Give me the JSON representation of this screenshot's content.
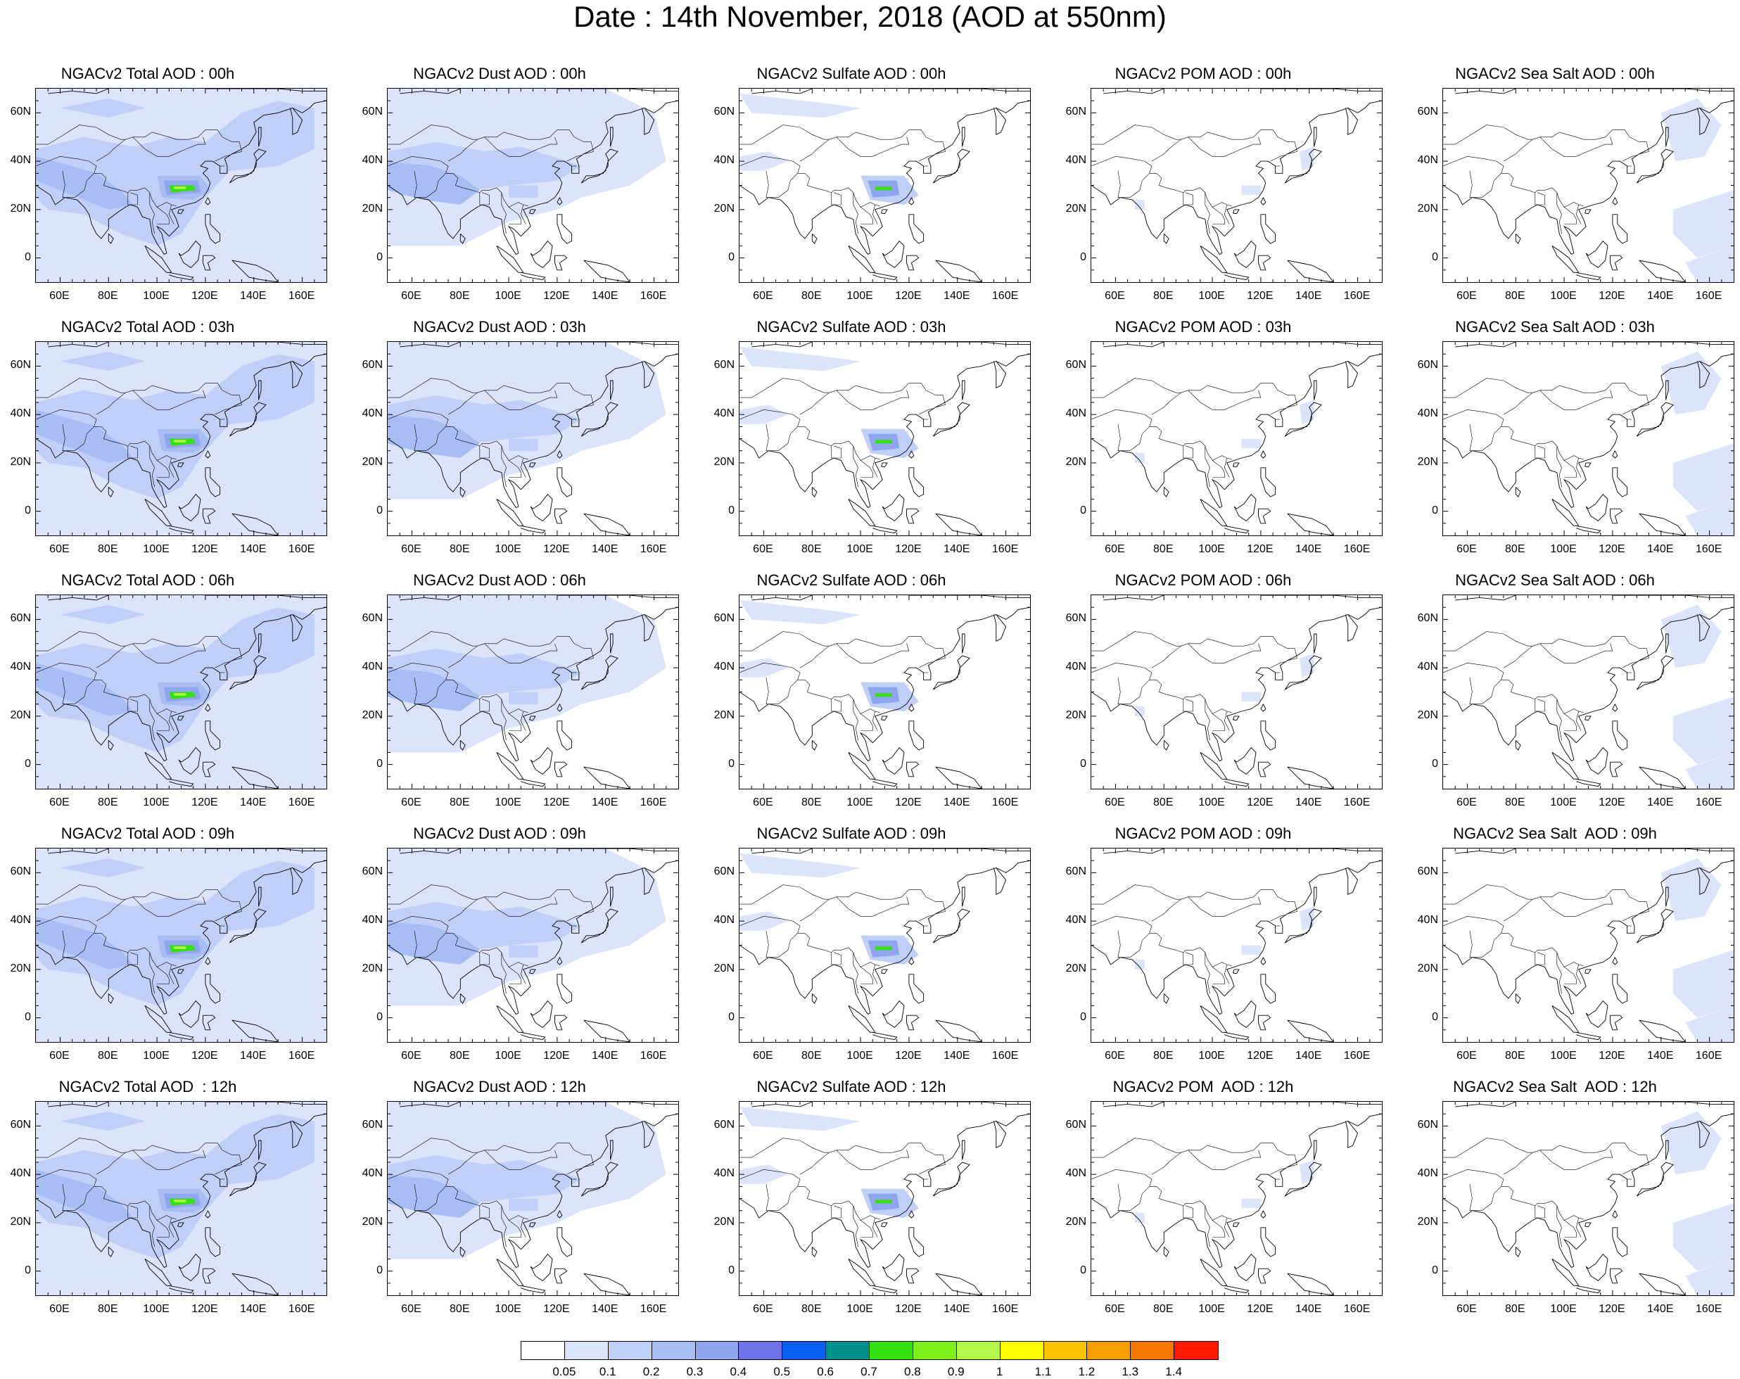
{
  "title": "Date : 14th November, 2018 (AOD at 550nm)",
  "chart_data": {
    "type": "heatmap",
    "panels": [
      {
        "title": "NGACv2 Total AOD : 00h",
        "variable": "total",
        "hour": "00h"
      },
      {
        "title": "NGACv2 Dust AOD : 00h",
        "variable": "dust",
        "hour": "00h"
      },
      {
        "title": "NGACv2 Sulfate AOD : 00h",
        "variable": "sulfate",
        "hour": "00h"
      },
      {
        "title": "NGACv2 POM AOD : 00h",
        "variable": "pom",
        "hour": "00h"
      },
      {
        "title": "NGACv2 Sea Salt AOD : 00h",
        "variable": "seasalt",
        "hour": "00h"
      },
      {
        "title": "NGACv2 Total AOD : 03h",
        "variable": "total",
        "hour": "03h"
      },
      {
        "title": "NGACv2 Dust AOD : 03h",
        "variable": "dust",
        "hour": "03h"
      },
      {
        "title": "NGACv2 Sulfate AOD : 03h",
        "variable": "sulfate",
        "hour": "03h"
      },
      {
        "title": "NGACv2 POM AOD : 03h",
        "variable": "pom",
        "hour": "03h"
      },
      {
        "title": "NGACv2 Sea Salt AOD : 03h",
        "variable": "seasalt",
        "hour": "03h"
      },
      {
        "title": "NGACv2 Total AOD : 06h",
        "variable": "total",
        "hour": "06h"
      },
      {
        "title": "NGACv2 Dust AOD : 06h",
        "variable": "dust",
        "hour": "06h"
      },
      {
        "title": "NGACv2 Sulfate AOD : 06h",
        "variable": "sulfate",
        "hour": "06h"
      },
      {
        "title": "NGACv2 POM AOD : 06h",
        "variable": "pom",
        "hour": "06h"
      },
      {
        "title": "NGACv2 Sea Salt AOD : 06h",
        "variable": "seasalt",
        "hour": "06h"
      },
      {
        "title": "NGACv2 Total AOD : 09h",
        "variable": "total",
        "hour": "09h"
      },
      {
        "title": "NGACv2 Dust AOD : 09h",
        "variable": "dust",
        "hour": "09h"
      },
      {
        "title": "NGACv2 Sulfate AOD : 09h",
        "variable": "sulfate",
        "hour": "09h"
      },
      {
        "title": "NGACv2 POM AOD : 09h",
        "variable": "pom",
        "hour": "09h"
      },
      {
        "title": "NGACv2 Sea Salt  AOD : 09h",
        "variable": "seasalt",
        "hour": "09h"
      },
      {
        "title": "NGACv2 Total AOD  : 12h",
        "variable": "total",
        "hour": "12h"
      },
      {
        "title": "NGACv2 Dust AOD : 12h",
        "variable": "dust",
        "hour": "12h"
      },
      {
        "title": "NGACv2 Sulfate AOD : 12h",
        "variable": "sulfate",
        "hour": "12h"
      },
      {
        "title": "NGACv2 POM  AOD : 12h",
        "variable": "pom",
        "hour": "12h"
      },
      {
        "title": "NGACv2 Sea Salt  AOD : 12h",
        "variable": "seasalt",
        "hour": "12h"
      }
    ],
    "lat_ticks": [
      "60N",
      "40N",
      "20N",
      "0"
    ],
    "lon_ticks": [
      "60E",
      "80E",
      "100E",
      "120E",
      "140E",
      "160E"
    ],
    "lat_range": [
      -10,
      70
    ],
    "lon_range": [
      50,
      170
    ],
    "colorbar": {
      "labels": [
        "0.05",
        "0.1",
        "0.2",
        "0.3",
        "0.4",
        "0.5",
        "0.6",
        "0.7",
        "0.8",
        "0.9",
        "1",
        "1.1",
        "1.2",
        "1.3",
        "1.4"
      ],
      "colors": [
        "#ffffff",
        "#dbe4fb",
        "#c0cff8",
        "#a9bdf5",
        "#8fa5f0",
        "#6f72e8",
        "#0a5ff2",
        "#00908a",
        "#35e010",
        "#7df01a",
        "#b5f54a",
        "#ffff00",
        "#f8c200",
        "#f7a000",
        "#f77800",
        "#ff1a00"
      ]
    }
  }
}
